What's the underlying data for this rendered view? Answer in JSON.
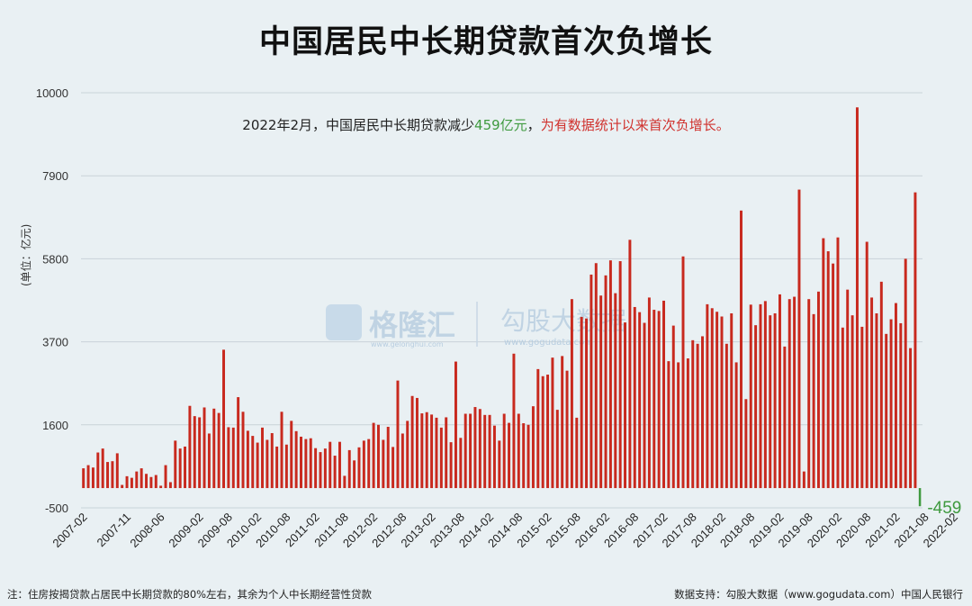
{
  "title": "中国居民中长期贷款首次负增长",
  "unit_label": "(单位：亿元)",
  "annotation": {
    "prefix": "2022年2月，中国居民中长期贷款减少",
    "value": "459亿元",
    "comma": "，",
    "highlight": "为有数据统计以来首次负增长。"
  },
  "watermark": {
    "brand1": "格隆汇",
    "brand1_url": "www.gelonghui.com",
    "brand2": "勾股大数据",
    "brand2_url": "www.gogudata.com"
  },
  "footer": {
    "note": "注：住房按揭贷款占居民中长期贷款的80%左右，其余为个人中长期经营性贷款",
    "source": "数据支持：勾股大数据（www.gogudata.com）中国人民银行"
  },
  "colors": {
    "bar": "#c8291e",
    "negative_bar": "#3f9a3f",
    "background": "#e9f0f3",
    "grid": "#c9d3d8"
  },
  "chart_data": {
    "type": "bar",
    "ylim": [
      -500,
      10000
    ],
    "yticks": [
      -500,
      1600,
      3700,
      5800,
      7900,
      10000
    ],
    "x_tick_labels": [
      "2007-02",
      "2007-11",
      "2008-06",
      "2009-02",
      "2009-08",
      "2010-02",
      "2010-08",
      "2011-02",
      "2011-08",
      "2012-02",
      "2012-08",
      "2013-02",
      "2013-08",
      "2014-02",
      "2014-08",
      "2015-02",
      "2015-08",
      "2016-02",
      "2016-08",
      "2017-02",
      "2017-08",
      "2018-02",
      "2018-08",
      "2019-02",
      "2019-08",
      "2020-02",
      "2020-08",
      "2021-02",
      "2021-08",
      "2022-02"
    ],
    "start_month": "2007-02",
    "end_month": "2022-02",
    "values": [
      500,
      580,
      520,
      900,
      1000,
      660,
      680,
      880,
      80,
      300,
      260,
      420,
      500,
      360,
      280,
      330,
      60,
      580,
      150,
      1200,
      1000,
      1050,
      2080,
      1820,
      1790,
      2040,
      1380,
      2010,
      1900,
      3500,
      1540,
      1530,
      2300,
      1930,
      1450,
      1320,
      1150,
      1530,
      1220,
      1390,
      1050,
      1930,
      1100,
      1700,
      1440,
      1300,
      1240,
      1260,
      1010,
      910,
      1000,
      1170,
      820,
      1170,
      310,
      960,
      700,
      1030,
      1200,
      1240,
      1650,
      1600,
      1220,
      1550,
      1040,
      2720,
      1380,
      1700,
      2330,
      2280,
      1890,
      1920,
      1860,
      1780,
      1530,
      1790,
      1160,
      3200,
      1270,
      1880,
      1880,
      2050,
      2000,
      1850,
      1850,
      1580,
      1200,
      1880,
      1650,
      3400,
      1880,
      1640,
      1600,
      2070,
      3010,
      2830,
      2870,
      3300,
      1980,
      3340,
      2970,
      4780,
      1780,
      4330,
      4290,
      5400,
      5690,
      4870,
      5380,
      5760,
      4930,
      5740,
      4190,
      6280,
      4580,
      4450,
      4180,
      4820,
      4510,
      4480,
      4740,
      3210,
      4110,
      3180,
      5860,
      3280,
      3740,
      3650,
      3840,
      4650,
      4550,
      4460,
      4340,
      3650,
      4420,
      3180,
      7020,
      2250,
      4640,
      4120,
      4650,
      4730,
      4370,
      4420,
      4900,
      3580,
      4780,
      4840,
      7550,
      420,
      4780,
      4400,
      4970,
      6320,
      5990,
      5680,
      6340,
      4060,
      5020,
      4370,
      9630,
      4080,
      6230,
      4820,
      4420,
      5220,
      3900,
      4270,
      4680,
      4170,
      5800,
      3540,
      7480,
      -459
    ],
    "negative_label": "-459"
  }
}
